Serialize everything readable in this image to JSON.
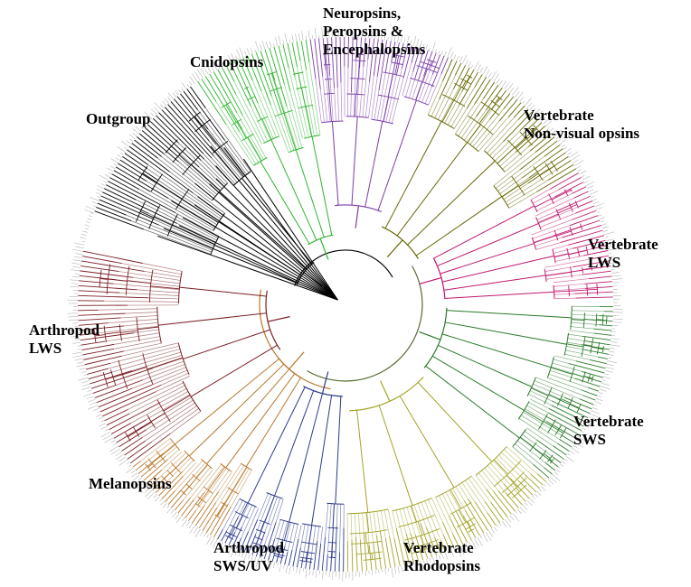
{
  "clades": [
    {
      "id": "outgroup",
      "lines": [
        "Outgroup"
      ],
      "color": "#000000",
      "from": 119,
      "to": 151,
      "count": 40,
      "tips": 11
    },
    {
      "id": "cnidopsins",
      "lines": [
        "Cnidopsins"
      ],
      "color": "#2db52d",
      "from": 151,
      "to": 184,
      "count": 22,
      "tips": 7
    },
    {
      "id": "neuropsins",
      "lines": [
        "Neuropsins,",
        "Peropsins &",
        "Encephalopsins"
      ],
      "color": "#7b3fa8",
      "from": 0,
      "to": 0,
      "count": 0,
      "tips": 0
    },
    {
      "id": "vert-nonvis",
      "lines": [
        "Vertebrate",
        "Non-visual opsins"
      ],
      "color": "#666600",
      "from": 0,
      "to": 0,
      "count": 0,
      "tips": 0
    },
    {
      "id": "vert-lws",
      "lines": [
        "Vertebrate",
        "LWS"
      ],
      "color": "#c0186e",
      "from": 0,
      "to": 0,
      "count": 0,
      "tips": 0
    },
    {
      "id": "vert-sws",
      "lines": [
        "Vertebrate",
        "SWS"
      ],
      "color": "#2a7a2a",
      "from": 0,
      "to": 0,
      "count": 0,
      "tips": 0
    },
    {
      "id": "vert-rho",
      "lines": [
        "Vertebrate",
        "Rhodopsins"
      ],
      "color": "#a3a32a",
      "from": 0,
      "to": 0,
      "count": 0,
      "tips": 0
    },
    {
      "id": "arth-swsuv",
      "lines": [
        "Arthropod",
        "SWS/UV"
      ],
      "color": "#2e3a8c",
      "from": 0,
      "to": 0,
      "count": 0,
      "tips": 0
    },
    {
      "id": "melanopsins",
      "lines": [
        "Melanopsins"
      ],
      "color": "#b8782e",
      "from": 0,
      "to": 0,
      "count": 0,
      "tips": 0
    },
    {
      "id": "arth-lws",
      "lines": [
        "Arthropod",
        "LWS"
      ],
      "color": "#7a1f24",
      "from": 0,
      "to": 0,
      "count": 0,
      "tips": 0
    }
  ],
  "tip_color": "#b5b5b5"
}
